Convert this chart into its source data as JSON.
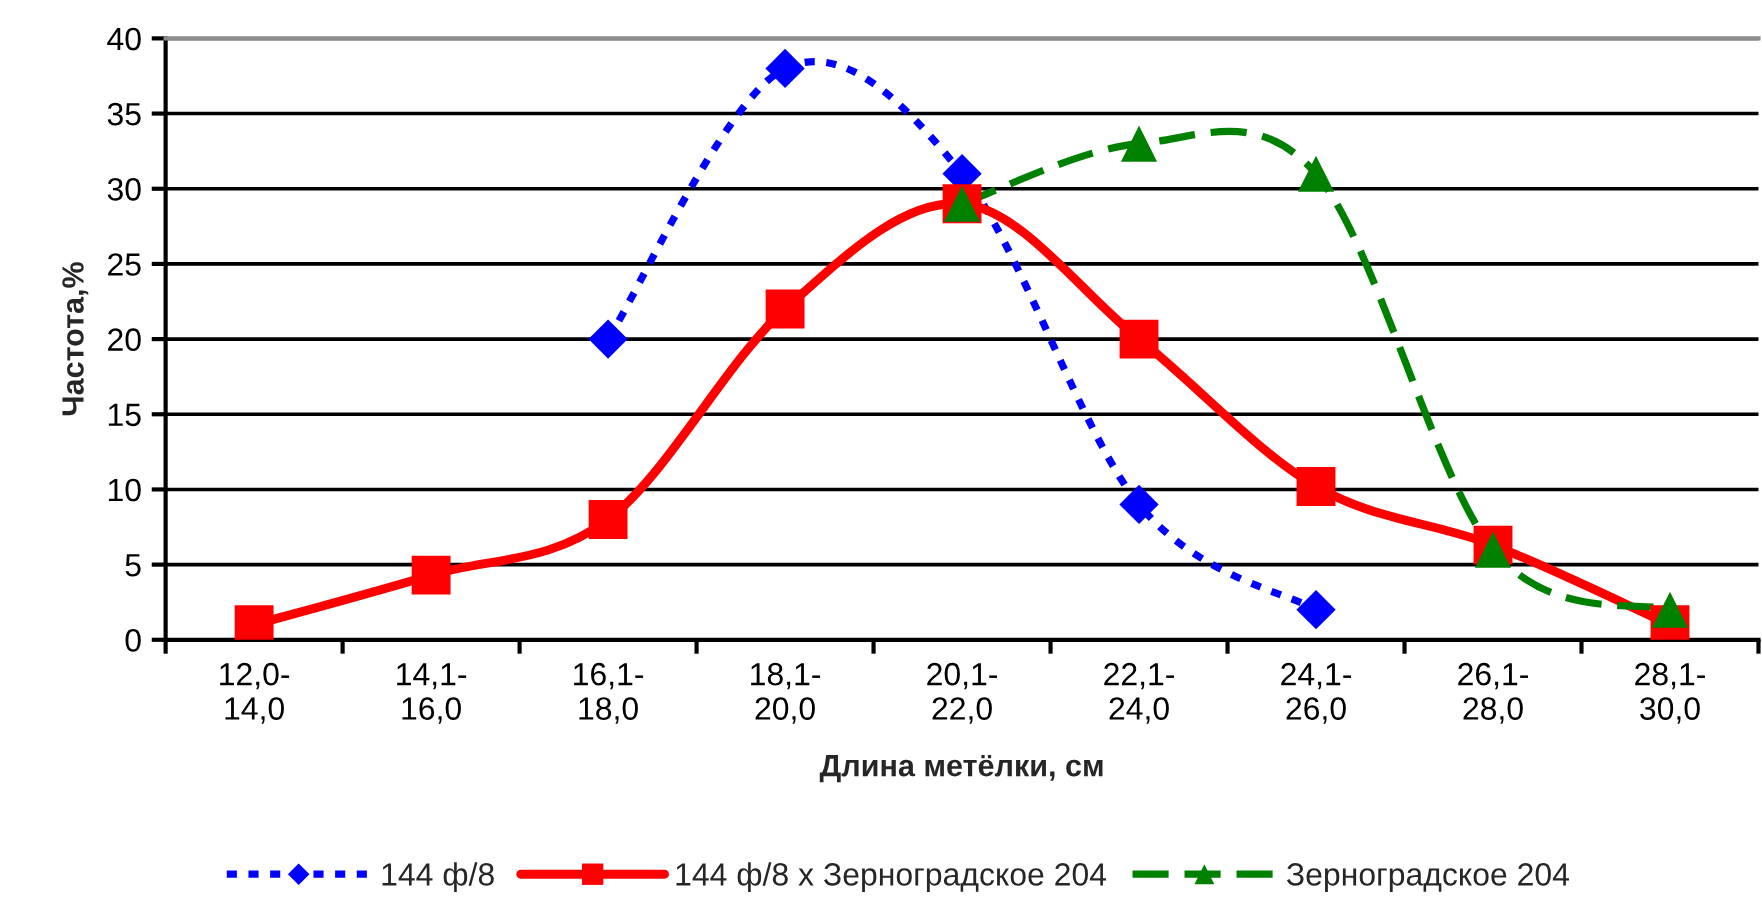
{
  "chart_data": {
    "type": "line",
    "xlabel": "Длина метёлки, см",
    "ylabel": "Частота,%",
    "categories": [
      "12,0-\n14,0",
      "14,1-\n16,0",
      "16,1-\n18,0",
      "18,1-\n20,0",
      "20,1-\n22,0",
      "22,1-\n24,0",
      "24,1-\n26,0",
      "26,1-\n28,0",
      "28,1-\n30,0"
    ],
    "series": [
      {
        "name": "144 ф/8",
        "color": "#0000ff",
        "values": [
          null,
          null,
          20,
          38,
          31,
          9,
          2,
          null,
          null
        ],
        "marker": "diamond",
        "line_style": "dotted"
      },
      {
        "name": "144 ф/8 х Зерноградское 204",
        "color": "#ff0000",
        "values": [
          1,
          4.3,
          8,
          22,
          29,
          20,
          10.2,
          6.3,
          1
        ],
        "marker": "square",
        "line_style": "solid"
      },
      {
        "name": "Зерноградское 204",
        "color": "#008000",
        "values": [
          null,
          null,
          null,
          null,
          29,
          33,
          31,
          6,
          2
        ],
        "marker": "triangle",
        "line_style": "dashed"
      }
    ],
    "ylim": [
      0,
      40
    ],
    "yticks": [
      0,
      5,
      10,
      15,
      20,
      25,
      30,
      35,
      40
    ],
    "grid": "y",
    "legend": "bottom"
  }
}
